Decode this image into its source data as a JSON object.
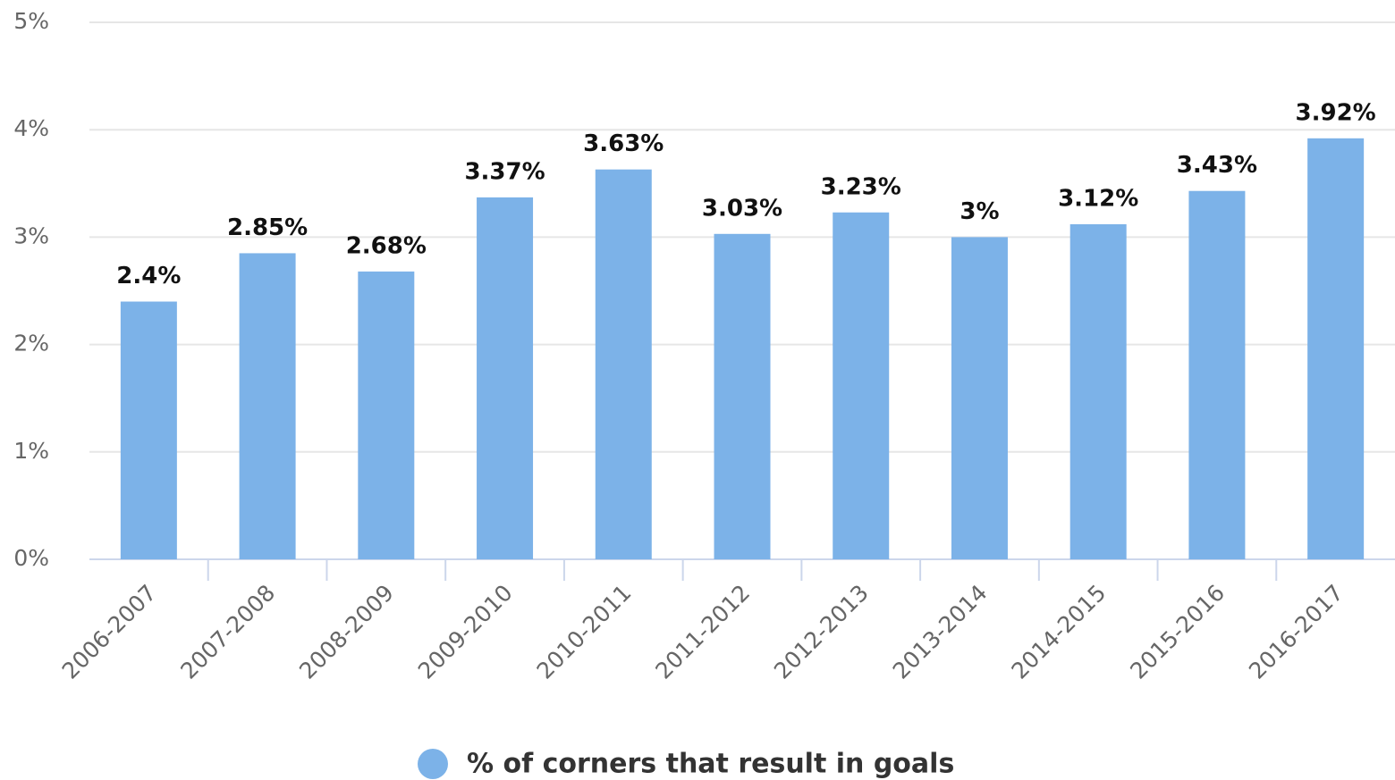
{
  "chart_data": {
    "type": "bar",
    "categories": [
      "2006-2007",
      "2007-2008",
      "2008-2009",
      "2009-2010",
      "2010-2011",
      "2011-2012",
      "2012-2013",
      "2013-2014",
      "2014-2015",
      "2015-2016",
      "2016-2017"
    ],
    "series": [
      {
        "name": "% of corners that result in goals",
        "color": "#7cb2e8",
        "values": [
          2.4,
          2.85,
          2.68,
          3.37,
          3.63,
          3.03,
          3.23,
          3,
          3.12,
          3.43,
          3.92
        ],
        "value_labels": [
          "2.4%",
          "2.85%",
          "2.68%",
          "3.37%",
          "3.63%",
          "3.03%",
          "3.23%",
          "3%",
          "3.12%",
          "3.43%",
          "3.92%"
        ]
      }
    ],
    "ylim": [
      0,
      5
    ],
    "yticks": [
      {
        "value": 0,
        "label": "0%"
      },
      {
        "value": 1,
        "label": "1%"
      },
      {
        "value": 2,
        "label": "2%"
      },
      {
        "value": 3,
        "label": "3%"
      },
      {
        "value": 4,
        "label": "4%"
      },
      {
        "value": 5,
        "label": "5%"
      }
    ],
    "grid": true,
    "legend": "bottom"
  }
}
